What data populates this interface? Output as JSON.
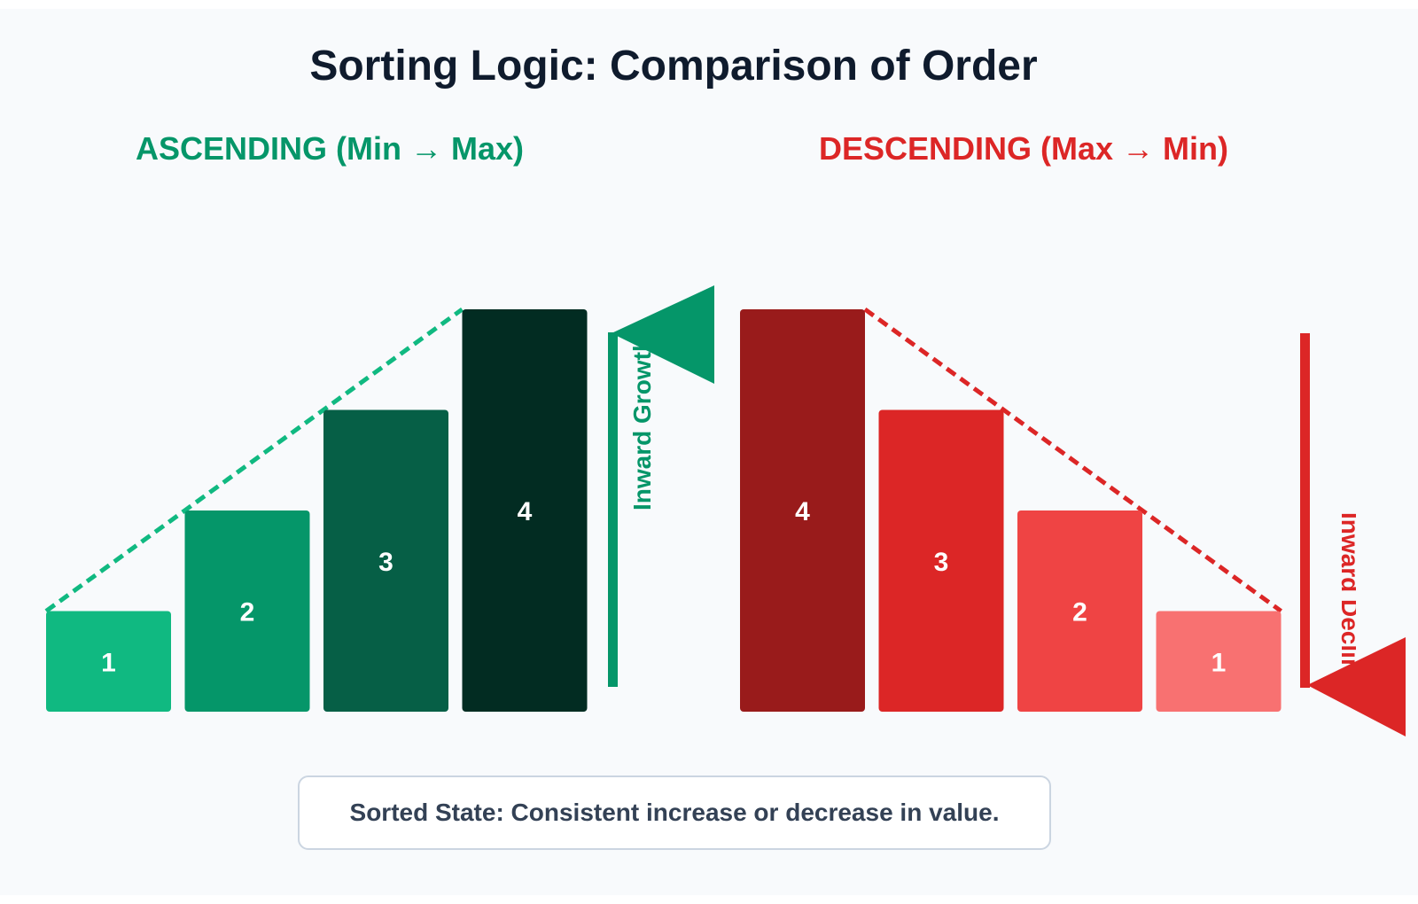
{
  "title": "Sorting Logic: Comparison of Order",
  "ascending": {
    "heading": "ASCENDING (Min → Max)",
    "color": "#059669",
    "line_color": "#10b981",
    "values": [
      1,
      2,
      3,
      4
    ],
    "labels": [
      "1",
      "2",
      "3",
      "4"
    ],
    "bar_colors": [
      "#10b981",
      "#059669",
      "#065f46",
      "#022c22"
    ],
    "arrow_label": "Inward Growth"
  },
  "descending": {
    "heading": "DESCENDING (Max → Min)",
    "color": "#dc2626",
    "line_color": "#dc2626",
    "values": [
      4,
      3,
      2,
      1
    ],
    "labels": [
      "4",
      "3",
      "2",
      "1"
    ],
    "bar_colors": [
      "#991b1b",
      "#dc2626",
      "#ef4444",
      "#f87171"
    ],
    "arrow_label": "Inward Decline"
  },
  "caption": "Sorted State: Consistent increase or decrease in value."
}
